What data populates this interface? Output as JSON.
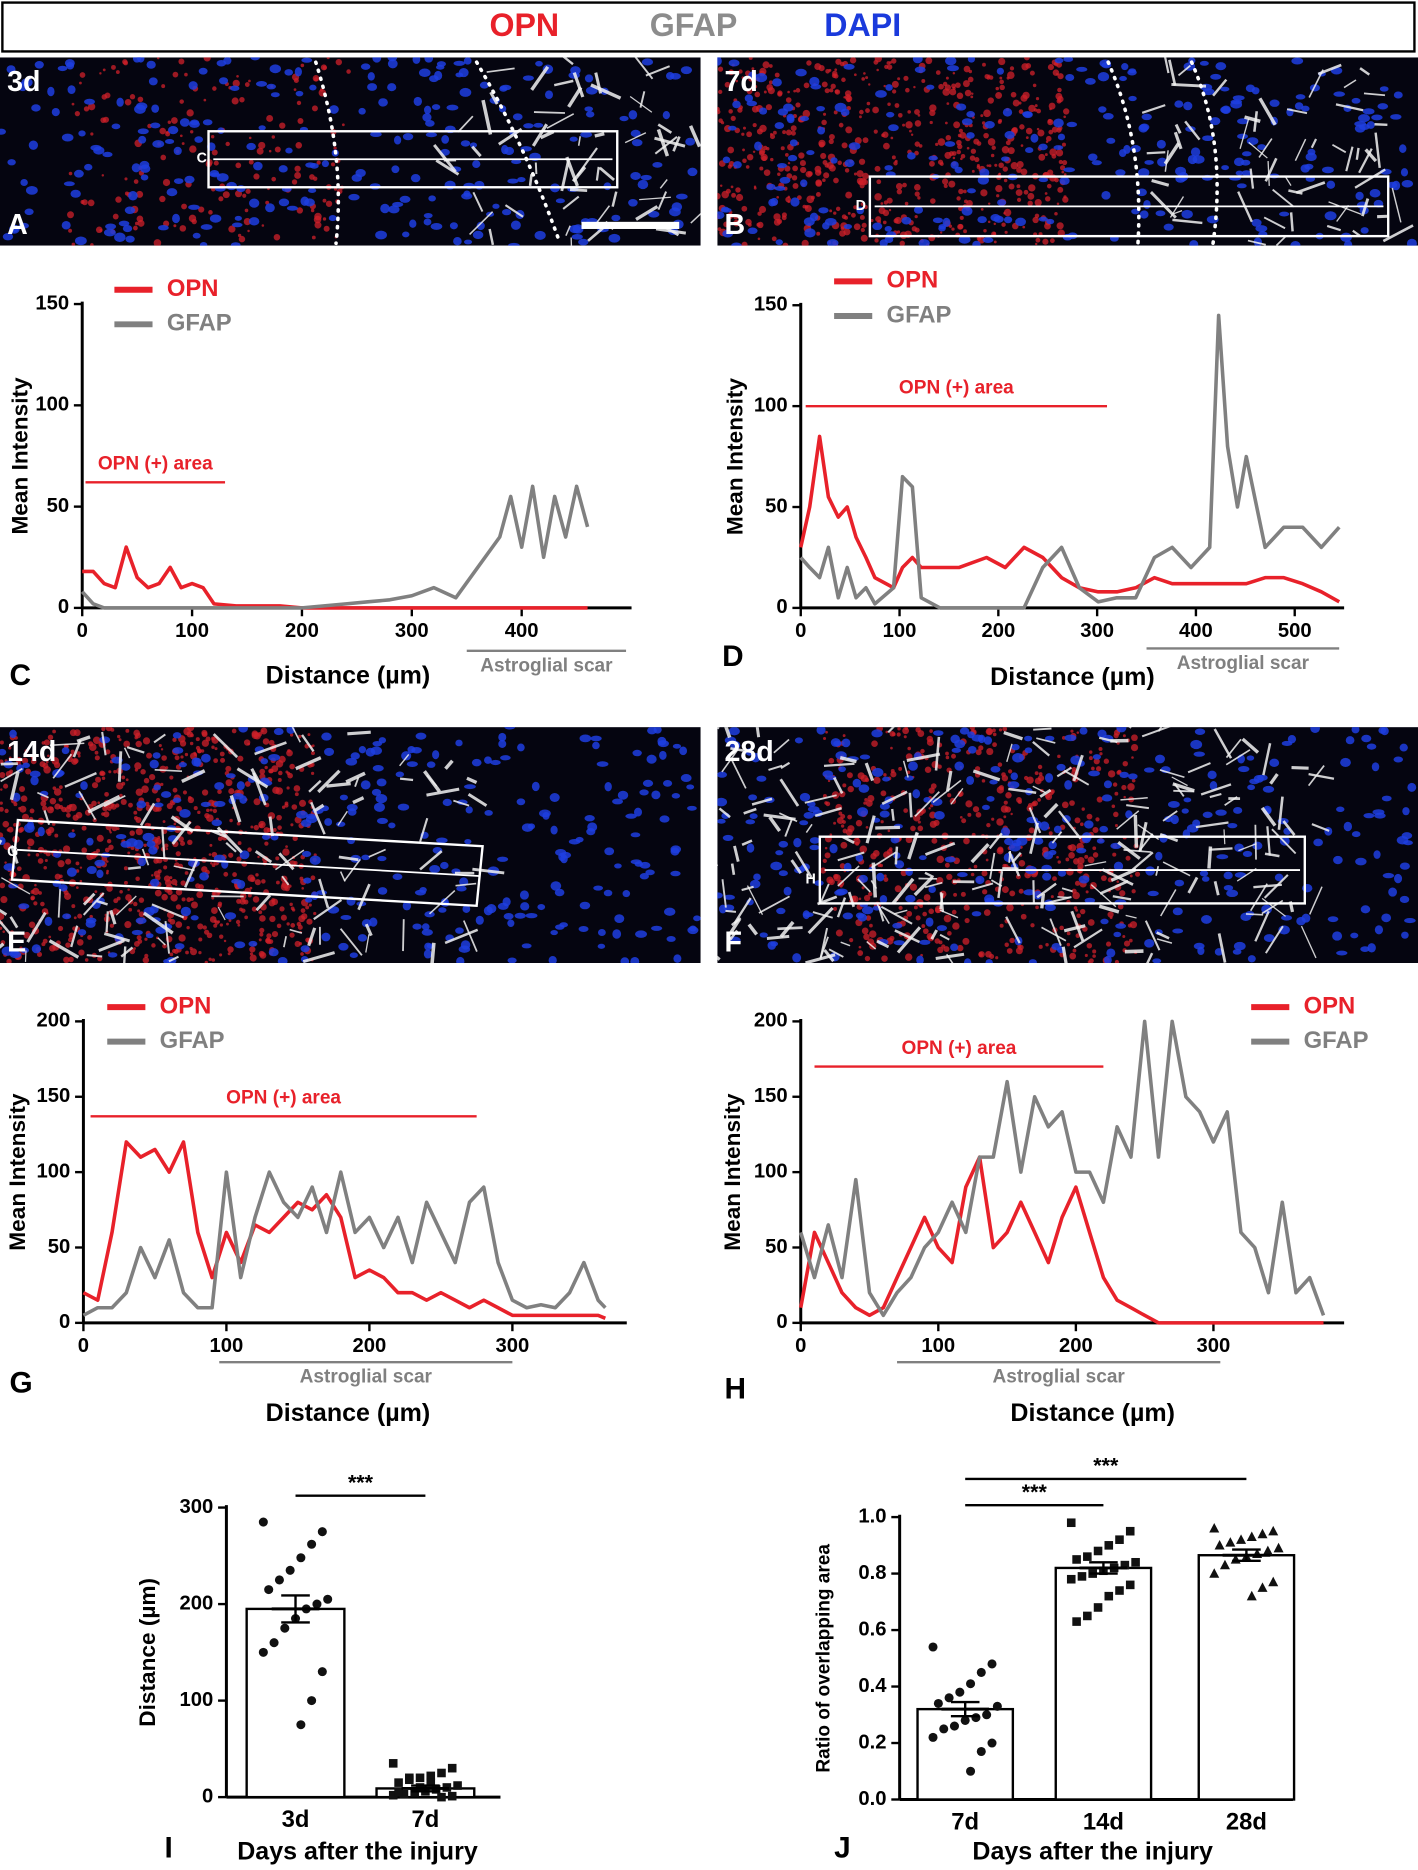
{
  "header": [
    {
      "text": "OPN",
      "color": "#e8212a"
    },
    {
      "text": "GFAP",
      "color": "#8c8c8c"
    },
    {
      "text": "DAPI",
      "color": "#1a3adc"
    }
  ],
  "images": [
    {
      "time": "3d",
      "panel": "A",
      "roi": "C"
    },
    {
      "time": "7d",
      "panel": "B",
      "roi": "D"
    },
    {
      "time": "14d",
      "panel": "E",
      "roi": "G"
    },
    {
      "time": "28d",
      "panel": "F",
      "roi": "H"
    }
  ],
  "chart_data": [
    {
      "type": "line",
      "panel": "C",
      "xlabel": "Distance  (µm)",
      "ylabel": "Mean Intensity",
      "xlim": [
        0,
        500
      ],
      "ylim": [
        0,
        150
      ],
      "xticks": [
        0,
        100,
        200,
        300,
        400
      ],
      "yticks": [
        0,
        50,
        100,
        150
      ],
      "x": [
        0,
        10,
        20,
        30,
        40,
        50,
        60,
        70,
        80,
        90,
        100,
        110,
        120,
        140,
        160,
        180,
        200,
        220,
        240,
        260,
        280,
        300,
        320,
        340,
        360,
        380,
        390,
        400,
        410,
        420,
        430,
        440,
        450,
        460
      ],
      "series": [
        {
          "name": "OPN",
          "color": "#e8212a",
          "values": [
            18,
            18,
            12,
            10,
            30,
            15,
            10,
            12,
            20,
            10,
            12,
            10,
            2,
            1,
            1,
            1,
            0,
            0,
            0,
            0,
            0,
            0,
            0,
            0,
            0,
            0,
            0,
            0,
            0,
            0,
            0,
            0,
            0,
            0
          ]
        },
        {
          "name": "GFAP",
          "color": "#808080",
          "values": [
            8,
            2,
            0,
            0,
            0,
            0,
            0,
            0,
            0,
            0,
            0,
            0,
            0,
            0,
            0,
            0,
            0,
            1,
            2,
            3,
            4,
            6,
            10,
            5,
            20,
            35,
            55,
            30,
            60,
            25,
            55,
            35,
            60,
            40
          ]
        }
      ],
      "annotations": [
        {
          "text": "OPN (+) area",
          "x": [
            3,
            130
          ],
          "y": 62,
          "color": "#e8212a"
        }
      ],
      "scar": {
        "text": "Astroglial scar",
        "x": [
          350,
          495
        ],
        "color": "#808080"
      }
    },
    {
      "type": "line",
      "panel": "D",
      "xlabel": "Distance  (µm)",
      "ylabel": "Mean Intensity",
      "xlim": [
        0,
        550
      ],
      "ylim": [
        0,
        150
      ],
      "xticks": [
        0,
        100,
        200,
        300,
        400,
        500
      ],
      "yticks": [
        0,
        50,
        100,
        150
      ],
      "x": [
        0,
        9,
        19,
        28,
        38,
        47,
        56,
        66,
        75,
        94,
        103,
        113,
        122,
        141,
        160,
        188,
        207,
        226,
        245,
        264,
        282,
        301,
        320,
        339,
        358,
        376,
        395,
        414,
        423,
        432,
        442,
        451,
        470,
        489,
        508,
        527,
        545
      ],
      "series": [
        {
          "name": "OPN",
          "color": "#e8212a",
          "values": [
            30,
            50,
            85,
            55,
            45,
            50,
            35,
            25,
            15,
            10,
            20,
            25,
            20,
            20,
            20,
            25,
            20,
            30,
            25,
            15,
            10,
            8,
            8,
            10,
            15,
            12,
            12,
            12,
            12,
            12,
            12,
            12,
            15,
            15,
            12,
            8,
            3
          ]
        },
        {
          "name": "GFAP",
          "color": "#808080",
          "values": [
            25,
            20,
            15,
            30,
            5,
            20,
            5,
            10,
            2,
            10,
            65,
            60,
            5,
            0,
            0,
            0,
            0,
            0,
            20,
            30,
            10,
            3,
            5,
            5,
            25,
            30,
            20,
            30,
            145,
            80,
            50,
            75,
            30,
            40,
            40,
            30,
            40
          ]
        }
      ],
      "annotations": [
        {
          "text": "OPN (+) area",
          "x": [
            5,
            310
          ],
          "y": 100,
          "color": "#e8212a"
        }
      ],
      "scar": {
        "text": "Astroglial scar",
        "x": [
          350,
          545
        ],
        "color": "#808080"
      }
    },
    {
      "type": "line",
      "panel": "G",
      "xlabel": "Distance  (µm)",
      "ylabel": "Mean Intensity",
      "xlim": [
        0,
        380
      ],
      "ylim": [
        0,
        200
      ],
      "xticks": [
        0,
        100,
        200,
        300
      ],
      "yticks": [
        0,
        50,
        100,
        150,
        200
      ],
      "x": [
        0,
        10,
        20,
        30,
        40,
        50,
        60,
        70,
        80,
        90,
        100,
        110,
        120,
        130,
        140,
        150,
        160,
        170,
        180,
        190,
        200,
        210,
        220,
        230,
        240,
        250,
        260,
        270,
        280,
        290,
        300,
        310,
        320,
        330,
        340,
        350,
        360,
        365
      ],
      "series": [
        {
          "name": "OPN",
          "color": "#e8212a",
          "values": [
            20,
            15,
            60,
            120,
            110,
            115,
            100,
            120,
            60,
            30,
            60,
            40,
            65,
            60,
            70,
            80,
            75,
            85,
            70,
            30,
            35,
            30,
            20,
            20,
            15,
            20,
            15,
            10,
            15,
            10,
            5,
            5,
            5,
            5,
            5,
            5,
            5,
            3
          ]
        },
        {
          "name": "GFAP",
          "color": "#808080",
          "values": [
            5,
            10,
            10,
            20,
            50,
            30,
            55,
            20,
            10,
            10,
            100,
            30,
            70,
            100,
            80,
            70,
            90,
            60,
            100,
            60,
            70,
            50,
            70,
            40,
            80,
            60,
            40,
            80,
            90,
            40,
            15,
            10,
            12,
            10,
            20,
            40,
            15,
            10
          ]
        }
      ],
      "annotations": [
        {
          "text": "OPN (+) area",
          "x": [
            5,
            275
          ],
          "y": 137,
          "color": "#e8212a"
        }
      ],
      "scar": {
        "text": "Astroglial scar",
        "x": [
          95,
          300
        ],
        "color": "#808080"
      }
    },
    {
      "type": "line",
      "panel": "H",
      "xlabel": "Distance  (µm)",
      "ylabel": "Mean Intensity",
      "xlim": [
        0,
        395
      ],
      "ylim": [
        0,
        200
      ],
      "xticks": [
        0,
        100,
        200,
        300
      ],
      "yticks": [
        0,
        50,
        100,
        150,
        200
      ],
      "x": [
        0,
        10,
        20,
        30,
        40,
        50,
        60,
        70,
        80,
        90,
        100,
        110,
        120,
        130,
        140,
        150,
        160,
        170,
        180,
        190,
        200,
        210,
        220,
        230,
        240,
        250,
        260,
        270,
        280,
        290,
        300,
        310,
        320,
        330,
        340,
        350,
        360,
        370,
        380
      ],
      "series": [
        {
          "name": "OPN",
          "color": "#e8212a",
          "values": [
            10,
            60,
            40,
            20,
            10,
            5,
            10,
            30,
            50,
            70,
            50,
            40,
            90,
            110,
            50,
            60,
            80,
            60,
            40,
            70,
            90,
            60,
            30,
            15,
            10,
            5,
            0,
            0,
            0,
            0,
            0,
            0,
            0,
            0,
            0,
            0,
            0,
            0,
            0
          ]
        },
        {
          "name": "GFAP",
          "color": "#808080",
          "values": [
            60,
            30,
            65,
            30,
            95,
            20,
            5,
            20,
            30,
            50,
            60,
            80,
            60,
            110,
            110,
            160,
            100,
            150,
            130,
            140,
            100,
            100,
            80,
            130,
            110,
            200,
            110,
            200,
            150,
            140,
            120,
            140,
            60,
            50,
            20,
            80,
            20,
            30,
            5
          ]
        }
      ],
      "annotations": [
        {
          "text": "OPN (+) area",
          "x": [
            10,
            220
          ],
          "y": 170,
          "color": "#e8212a"
        }
      ],
      "scar": {
        "text": "Astroglial scar",
        "x": [
          70,
          305
        ],
        "color": "#808080"
      }
    },
    {
      "type": "bar",
      "panel": "I",
      "xlabel": "Days after the injury",
      "ylabel": "Distance  (µm)",
      "ylim": [
        0,
        300
      ],
      "yticks": [
        0,
        100,
        200,
        300
      ],
      "categories": [
        "3d",
        "7d"
      ],
      "values": [
        195,
        9
      ],
      "errors": [
        14,
        3
      ],
      "markers": [
        "circle",
        "square"
      ],
      "points": [
        [
          285,
          275,
          262,
          248,
          235,
          225,
          215,
          205,
          200,
          195,
          185,
          175,
          160,
          150,
          130,
          100,
          75
        ],
        [
          35,
          30,
          25,
          22,
          20,
          18,
          15,
          12,
          10,
          8,
          6,
          5,
          3,
          2,
          1,
          0,
          15,
          10,
          20,
          5
        ]
      ],
      "significance": [
        {
          "between": [
            0,
            1
          ],
          "label": "***"
        }
      ]
    },
    {
      "type": "bar",
      "panel": "J",
      "xlabel": "Days after the injury",
      "ylabel": "Ratio of overlapping area",
      "ylim": [
        0,
        1
      ],
      "yticks": [
        {
          "value": 0,
          "label": "0.0"
        },
        0.2,
        0.4,
        0.6,
        0.8,
        {
          "value": 1,
          "label": "1.0"
        }
      ],
      "categories": [
        "7d",
        "14d",
        "28d"
      ],
      "values": [
        0.32,
        0.82,
        0.865
      ],
      "errors": [
        0.025,
        0.02,
        0.02
      ],
      "markers": [
        "circle",
        "square",
        "triangle"
      ],
      "points": [
        [
          0.54,
          0.48,
          0.45,
          0.41,
          0.38,
          0.36,
          0.34,
          0.33,
          0.3,
          0.29,
          0.28,
          0.26,
          0.25,
          0.22,
          0.2,
          0.17,
          0.1
        ],
        [
          0.98,
          0.95,
          0.92,
          0.9,
          0.88,
          0.86,
          0.85,
          0.84,
          0.83,
          0.82,
          0.81,
          0.8,
          0.79,
          0.78,
          0.76,
          0.74,
          0.72,
          0.68,
          0.65,
          0.63
        ],
        [
          0.96,
          0.95,
          0.94,
          0.93,
          0.92,
          0.91,
          0.9,
          0.89,
          0.88,
          0.87,
          0.86,
          0.85,
          0.83,
          0.8,
          0.77,
          0.75,
          0.72
        ]
      ],
      "significance": [
        {
          "between": [
            0,
            1
          ],
          "label": "***"
        },
        {
          "between": [
            0,
            2
          ],
          "label": "***"
        }
      ]
    }
  ]
}
